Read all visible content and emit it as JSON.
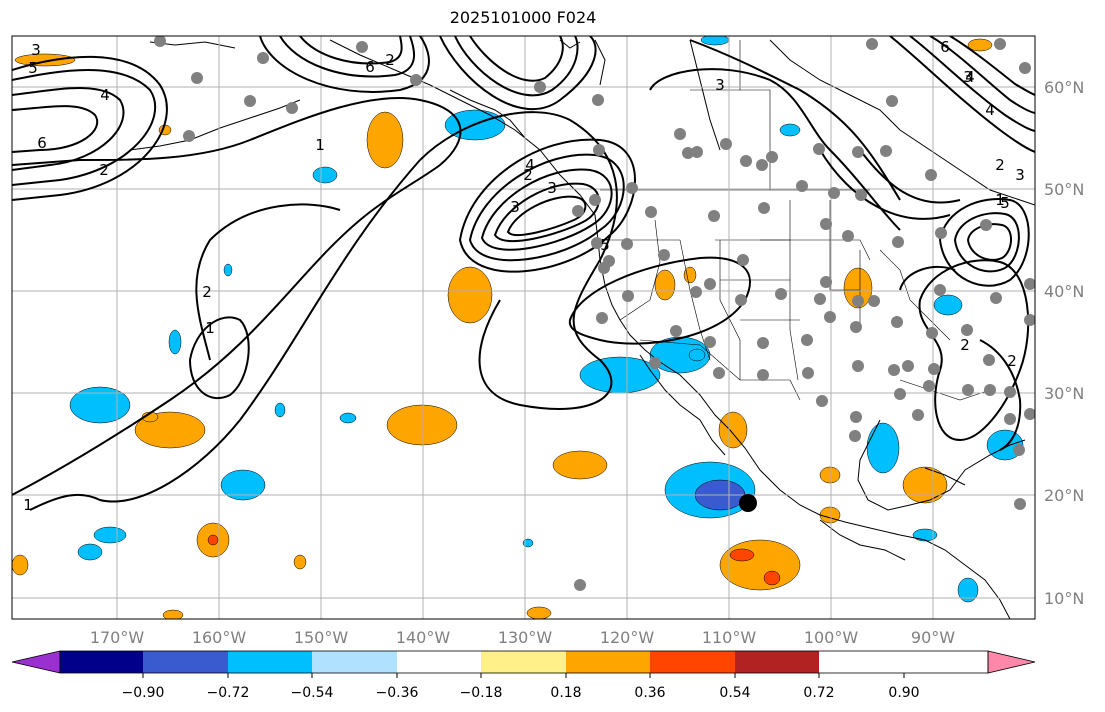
{
  "title": "2025101000 F024",
  "lon_labels": [
    "170°W",
    "160°W",
    "150°W",
    "140°W",
    "130°W",
    "120°W",
    "110°W",
    "100°W",
    "90°W"
  ],
  "lat_labels": [
    "60°N",
    "50°N",
    "40°N",
    "30°N",
    "20°N",
    "10°N"
  ],
  "colorbar": {
    "ticks": [
      "−0.90",
      "−0.72",
      "−0.54",
      "−0.36",
      "−0.18",
      "0.18",
      "0.36",
      "0.54",
      "0.72",
      "0.90"
    ],
    "colors": [
      "#9b30d0",
      "#00008b",
      "#3a5bd0",
      "#00bfff",
      "#b0e2ff",
      "#ffffff",
      "#fff08a",
      "#ffa500",
      "#ff4500",
      "#b22222",
      "#ff88aa"
    ]
  },
  "contour_labels": [
    "3",
    "5",
    "4",
    "6",
    "2",
    "1",
    "2",
    "1",
    "1",
    "2",
    "6",
    "4",
    "3",
    "2",
    "3",
    "5",
    "3",
    "4",
    "2",
    "6",
    "5",
    "4",
    "3",
    "1",
    "2",
    "2",
    "3"
  ],
  "colors": {
    "contour": "#000000",
    "station": "#808080",
    "grid": "#b0b0b0",
    "coast": "#000000"
  }
}
